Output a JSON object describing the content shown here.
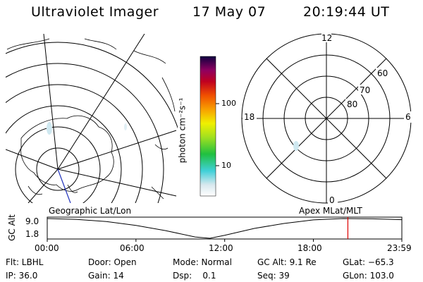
{
  "header": {
    "title": "Ultraviolet Imager",
    "date": "17 May 07",
    "time": "20:19:44 UT"
  },
  "colorbar": {
    "label": "photon cm⁻²s⁻¹",
    "ticks": [
      "100",
      "10"
    ],
    "scale": "log"
  },
  "polar_plot": {
    "mlt_labels": [
      "12",
      "18",
      "6",
      "0"
    ],
    "mlat_labels": [
      "60",
      "70",
      "80"
    ]
  },
  "map_labels": {
    "left": "Geographic Lat/Lon",
    "right": "Apex MLat/MLT"
  },
  "altitude_plot": {
    "axis_label": "GC Alt",
    "y_ticks": [
      "9.0",
      "1.8"
    ],
    "x_ticks": [
      "00:00",
      "06:00",
      "12:00",
      "18:00",
      "23:59"
    ],
    "marker_color": "#dd0000"
  },
  "chart_data": {
    "type": "line",
    "title": "",
    "xlabel": "",
    "ylabel": "GC Alt",
    "x": [
      0,
      2,
      4,
      6,
      8,
      10,
      11,
      12,
      14,
      16,
      18,
      20,
      22,
      23.98
    ],
    "y": [
      9.0,
      8.7,
      7.9,
      6.5,
      4.6,
      2.3,
      1.8,
      2.9,
      5.4,
      7.2,
      8.5,
      9.0,
      8.9,
      8.6
    ],
    "ylim": [
      1.8,
      9.0
    ],
    "xlim": [
      0,
      23.98
    ],
    "current_x": 20.33
  },
  "status": {
    "flt": "Flt: LBHL",
    "ip": "IP: 36.0",
    "door": "Door: Open",
    "gain": "Gain: 14",
    "mode": "Mode: Normal",
    "dsp": "Dsp:    0.1",
    "gcalt": "GC Alt: 9.1 Re",
    "seq": "Seq: 39",
    "glat": "GLat: −65.3",
    "glon": "GLon: 103.0"
  }
}
